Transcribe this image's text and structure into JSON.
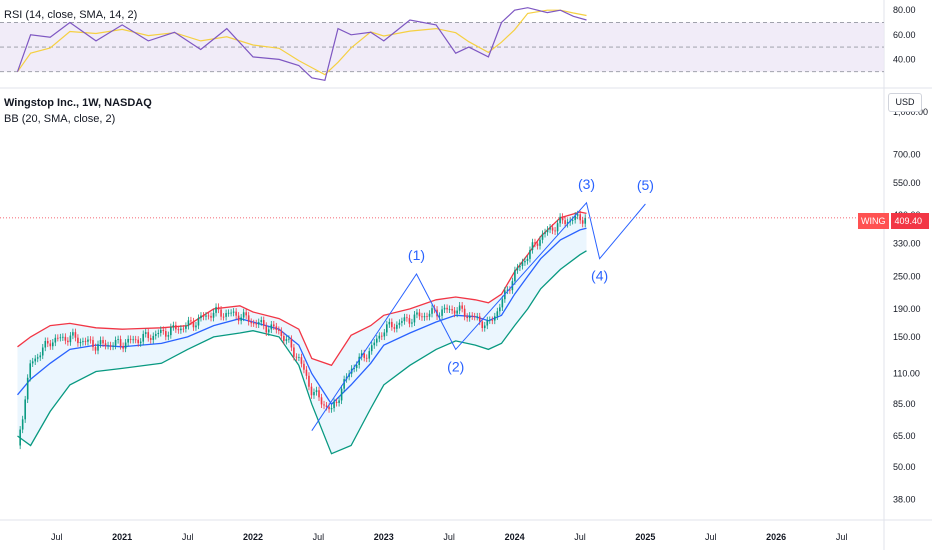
{
  "rsi_panel": {
    "label": "RSI (14, close, SMA, 14, 2)",
    "y_ticks": [
      "80.00",
      "60.00",
      "40.00"
    ],
    "upper_band": 70,
    "lower_band": 30,
    "colors": {
      "rsi_line": "#7e57c2",
      "rsi_ma": "#f5d042",
      "band_fill": "#ede7f6"
    }
  },
  "main_panel": {
    "title": "Wingstop Inc., 1W, NASDAQ",
    "indicator": "BB (20, SMA, close, 2)",
    "currency_button": "USD",
    "symbol_badge": "WING",
    "last_price_badge": "409.40",
    "top_cut_label": "1,000.00",
    "colors": {
      "upper_band": "#f23645",
      "lower_band": "#089981",
      "basis": "#2962ff",
      "band_fill": "#e3f2fd",
      "wave_lines": "#2962ff",
      "up_candle": "#089981",
      "down_candle": "#f23645"
    }
  },
  "chart_data": {
    "type": "line",
    "scale": "log",
    "y_ticks": [
      "700.00",
      "550.00",
      "420.00",
      "330.00",
      "250.00",
      "190.00",
      "150.00",
      "110.00",
      "85.00",
      "65.00",
      "50.00",
      "38.00"
    ],
    "x_ticks": [
      "Jul",
      "2021",
      "Jul",
      "2022",
      "Jul",
      "2023",
      "Jul",
      "2024",
      "Jul",
      "2025",
      "Jul",
      "2026",
      "Jul"
    ],
    "last_price": 409.4,
    "series": [
      {
        "name": "upper",
        "x": [
          2020.2,
          2020.3,
          2020.45,
          2020.6,
          2020.8,
          2021.0,
          2021.3,
          2021.5,
          2021.7,
          2021.9,
          2022.0,
          2022.2,
          2022.35,
          2022.45,
          2022.6,
          2022.75,
          2022.9,
          2023.0,
          2023.2,
          2023.4,
          2023.55,
          2023.7,
          2023.8,
          2023.9,
          2024.0,
          2024.1,
          2024.2,
          2024.35,
          2024.5,
          2024.55
        ],
        "values": [
          138,
          150,
          165,
          168,
          162,
          160,
          162,
          165,
          190,
          195,
          185,
          175,
          160,
          125,
          118,
          152,
          165,
          180,
          190,
          205,
          210,
          205,
          200,
          215,
          260,
          300,
          350,
          410,
          430,
          425
        ]
      },
      {
        "name": "basis",
        "x": [
          2020.2,
          2020.3,
          2020.45,
          2020.6,
          2020.8,
          2021.0,
          2021.3,
          2021.5,
          2021.7,
          2021.9,
          2022.0,
          2022.2,
          2022.35,
          2022.45,
          2022.6,
          2022.75,
          2022.9,
          2023.0,
          2023.2,
          2023.4,
          2023.55,
          2023.7,
          2023.8,
          2023.9,
          2024.0,
          2024.1,
          2024.2,
          2024.35,
          2024.5,
          2024.55
        ],
        "values": [
          92,
          105,
          120,
          135,
          140,
          138,
          142,
          150,
          165,
          175,
          170,
          160,
          140,
          110,
          85,
          100,
          120,
          140,
          155,
          170,
          180,
          178,
          172,
          180,
          215,
          250,
          290,
          340,
          370,
          375
        ]
      },
      {
        "name": "lower",
        "x": [
          2020.2,
          2020.3,
          2020.45,
          2020.6,
          2020.8,
          2021.0,
          2021.3,
          2021.5,
          2021.7,
          2021.9,
          2022.0,
          2022.2,
          2022.35,
          2022.45,
          2022.6,
          2022.75,
          2022.9,
          2023.0,
          2023.2,
          2023.4,
          2023.55,
          2023.7,
          2023.8,
          2023.9,
          2024.0,
          2024.1,
          2024.2,
          2024.35,
          2024.5,
          2024.55
        ],
        "values": [
          65,
          60,
          80,
          100,
          112,
          115,
          120,
          135,
          150,
          155,
          158,
          150,
          118,
          85,
          56,
          60,
          82,
          100,
          118,
          135,
          145,
          140,
          135,
          142,
          165,
          190,
          225,
          265,
          300,
          310
        ]
      },
      {
        "name": "close",
        "x": [
          2020.2,
          2020.3,
          2020.45,
          2020.6,
          2020.8,
          2021.0,
          2021.3,
          2021.5,
          2021.7,
          2021.9,
          2022.0,
          2022.2,
          2022.35,
          2022.45,
          2022.6,
          2022.75,
          2022.9,
          2023.0,
          2023.2,
          2023.4,
          2023.55,
          2023.7,
          2023.8,
          2023.9,
          2024.0,
          2024.1,
          2024.2,
          2024.35,
          2024.5,
          2024.55
        ],
        "values": [
          60,
          120,
          145,
          150,
          140,
          142,
          155,
          165,
          185,
          180,
          170,
          158,
          125,
          95,
          80,
          115,
          135,
          160,
          175,
          185,
          190,
          175,
          165,
          200,
          255,
          300,
          350,
          395,
          410,
          409
        ]
      }
    ],
    "waves": {
      "x": [
        2022.45,
        2023.25,
        2023.55,
        2024.55,
        2024.65,
        2025.0
      ],
      "values": [
        68,
        255,
        135,
        465,
        290,
        460
      ],
      "labels": [
        "(1)",
        "(2)",
        "(3)",
        "(4)",
        "(5)"
      ]
    },
    "rsi": {
      "x": [
        2020.2,
        2020.3,
        2020.45,
        2020.6,
        2020.8,
        2021.0,
        2021.2,
        2021.4,
        2021.6,
        2021.8,
        2022.0,
        2022.2,
        2022.35,
        2022.45,
        2022.55,
        2022.65,
        2022.75,
        2022.9,
        2023.0,
        2023.2,
        2023.4,
        2023.55,
        2023.65,
        2023.8,
        2023.9,
        2024.0,
        2024.1,
        2024.25,
        2024.35,
        2024.45,
        2024.55
      ],
      "values": [
        30,
        60,
        58,
        70,
        55,
        68,
        55,
        62,
        48,
        65,
        42,
        40,
        35,
        25,
        23,
        65,
        60,
        62,
        55,
        72,
        68,
        45,
        50,
        42,
        70,
        80,
        82,
        78,
        80,
        75,
        72
      ]
    }
  }
}
